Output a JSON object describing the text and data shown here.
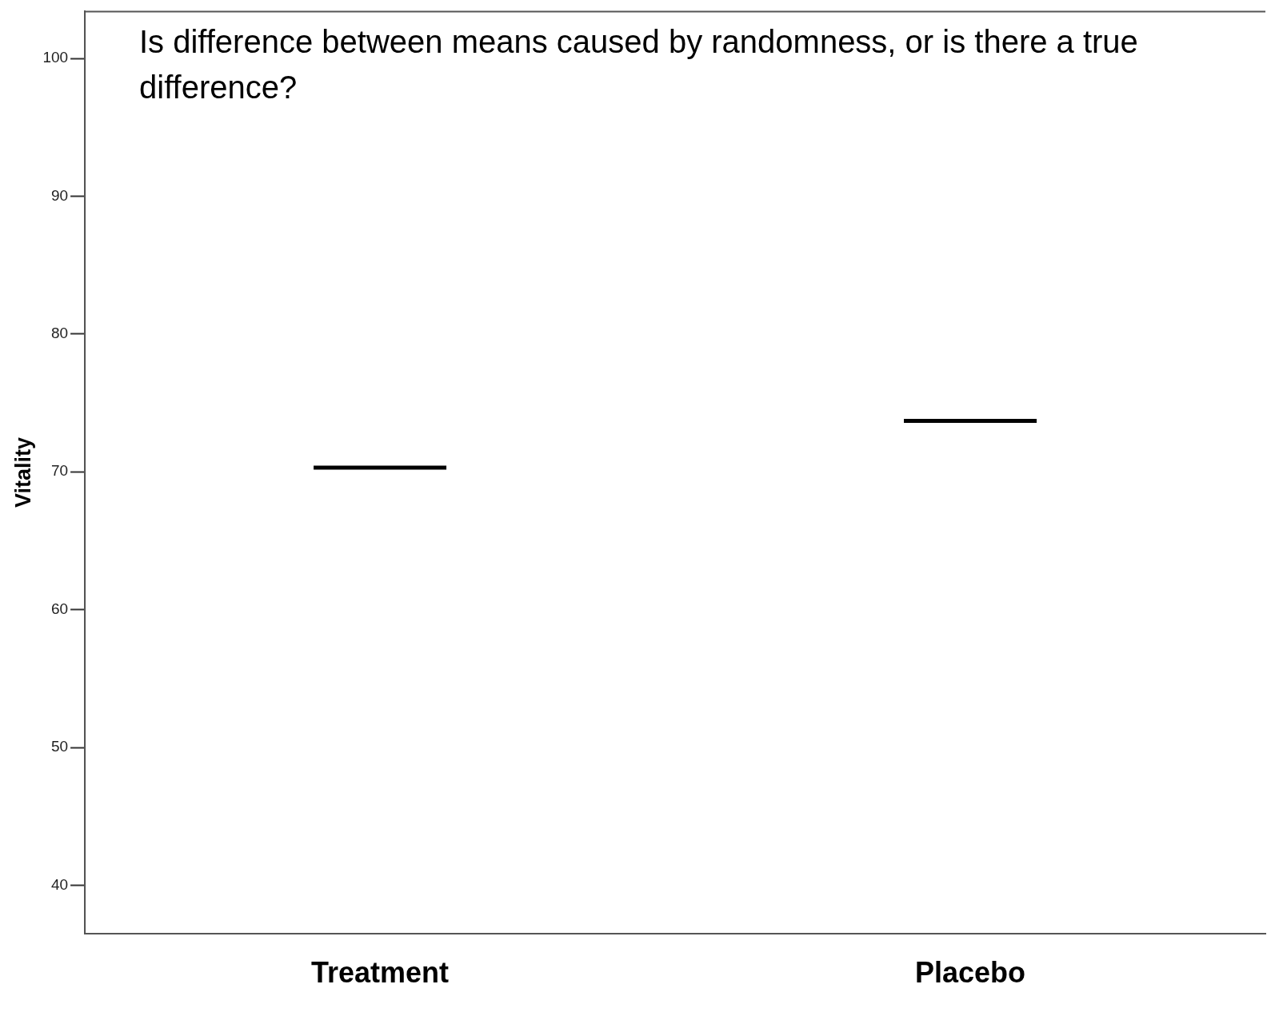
{
  "chart_data": {
    "type": "box",
    "title": "Is difference between means caused by randomness, or is there a true difference?",
    "ylabel": "Vitality",
    "categories": [
      "Treatment",
      "Placebo"
    ],
    "boxes": [
      {
        "low": 70.3,
        "q1": 70.3,
        "median": 70.3,
        "q3": 70.3,
        "high": 70.3
      },
      {
        "low": 73.7,
        "q1": 73.7,
        "median": 73.7,
        "q3": 73.7,
        "high": 73.7
      }
    ],
    "color": "#000000",
    "ylim": [
      36.5,
      103.4
    ],
    "yticks": [
      40,
      50,
      60,
      70,
      80,
      90,
      100
    ],
    "grid": false,
    "legend": false
  }
}
